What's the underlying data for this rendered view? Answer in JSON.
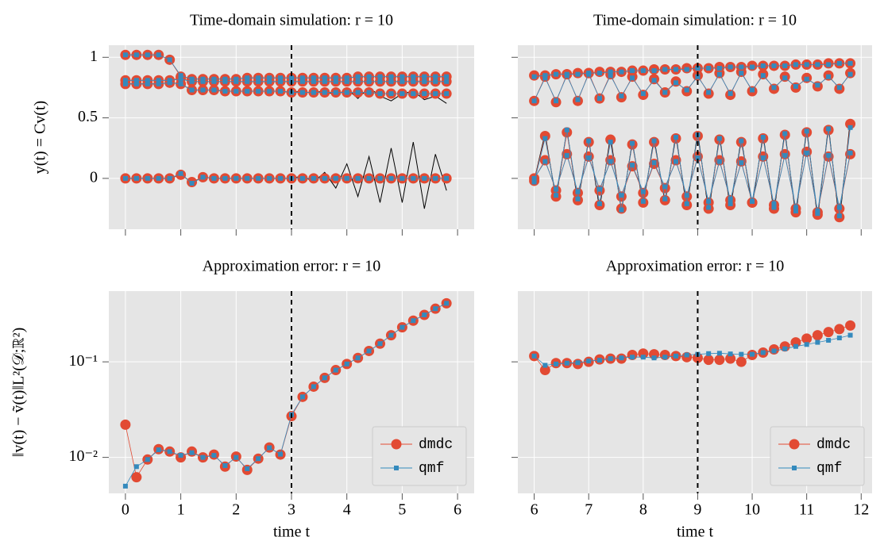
{
  "chart_data": [
    {
      "type": "line",
      "title": "Time-domain simulation: r = 10",
      "ylabel": "y(t) = Cv(t)",
      "x": [
        0,
        0.2,
        0.4,
        0.6,
        0.8,
        1.0,
        1.2,
        1.4,
        1.6,
        1.8,
        2.0,
        2.2,
        2.4,
        2.6,
        2.8,
        3.0,
        3.2,
        3.4,
        3.6,
        3.8,
        4.0,
        4.2,
        4.4,
        4.6,
        4.8,
        5.0,
        5.2,
        5.4,
        5.6,
        5.8
      ],
      "xlim": [
        -0.3,
        6.3
      ],
      "xticks": [
        0,
        1,
        2,
        3,
        4,
        5,
        6
      ],
      "ylim": [
        -0.42,
        1.1
      ],
      "yticks": [
        0,
        0.5,
        1
      ],
      "grid": true,
      "vline": 3,
      "xtick_labels": false,
      "ytick_labels": true,
      "series": [
        {
          "color": "#000000",
          "marker": "none",
          "values": [
            0.78,
            0.78,
            0.78,
            0.78,
            0.79,
            0.78,
            0.73,
            0.73,
            0.73,
            0.72,
            0.72,
            0.72,
            0.72,
            0.72,
            0.72,
            0.71,
            0.72,
            0.7,
            0.73,
            0.68,
            0.74,
            0.66,
            0.75,
            0.68,
            0.64,
            0.7,
            0.72,
            0.65,
            0.68,
            0.62
          ]
        },
        {
          "color": "#000000",
          "marker": "none",
          "values": [
            0,
            0,
            0,
            0,
            0,
            0.03,
            -0.03,
            0.01,
            0,
            0,
            0,
            0,
            0,
            0,
            0,
            0,
            0.02,
            -0.03,
            0.05,
            -0.08,
            0.12,
            -0.15,
            0.18,
            -0.2,
            0.25,
            -0.2,
            0.3,
            -0.25,
            0.2,
            -0.1
          ]
        },
        {
          "color": "#E24A33",
          "marker": "o",
          "values": [
            1.02,
            1.02,
            1.02,
            1.02,
            0.98,
            0.84,
            0.82,
            0.82,
            0.82,
            0.82,
            0.82,
            0.83,
            0.83,
            0.83,
            0.83,
            0.83,
            0.83,
            0.83,
            0.83,
            0.83,
            0.83,
            0.84,
            0.84,
            0.84,
            0.84,
            0.84,
            0.84,
            0.84,
            0.84,
            0.84
          ]
        },
        {
          "color": "#E24A33",
          "marker": "o",
          "values": [
            0.81,
            0.81,
            0.81,
            0.81,
            0.81,
            0.83,
            0.8,
            0.8,
            0.8,
            0.8,
            0.8,
            0.8,
            0.8,
            0.8,
            0.8,
            0.8,
            0.8,
            0.8,
            0.8,
            0.8,
            0.8,
            0.8,
            0.8,
            0.8,
            0.8,
            0.8,
            0.8,
            0.8,
            0.8,
            0.8
          ]
        },
        {
          "color": "#E24A33",
          "marker": "o",
          "values": [
            0.78,
            0.78,
            0.78,
            0.78,
            0.79,
            0.78,
            0.73,
            0.73,
            0.73,
            0.72,
            0.72,
            0.72,
            0.72,
            0.72,
            0.72,
            0.71,
            0.71,
            0.71,
            0.71,
            0.71,
            0.71,
            0.71,
            0.71,
            0.7,
            0.7,
            0.7,
            0.7,
            0.7,
            0.7,
            0.7
          ]
        },
        {
          "color": "#E24A33",
          "marker": "o",
          "values": [
            0,
            0,
            0,
            0,
            0,
            0.03,
            -0.03,
            0.01,
            0,
            0,
            0,
            0,
            0,
            0,
            0,
            0,
            0,
            0,
            0,
            0,
            0,
            0,
            0,
            0,
            0,
            0,
            0,
            0,
            0,
            0
          ]
        },
        {
          "color": "#348ABD",
          "marker": "s",
          "values": [
            1.02,
            1.02,
            1.02,
            1.02,
            0.98,
            0.85,
            0.82,
            0.82,
            0.82,
            0.82,
            0.82,
            0.83,
            0.83,
            0.83,
            0.83,
            0.83,
            0.83,
            0.83,
            0.83,
            0.83,
            0.83,
            0.84,
            0.84,
            0.84,
            0.84,
            0.84,
            0.84,
            0.84,
            0.84,
            0.84
          ]
        },
        {
          "color": "#348ABD",
          "marker": "s",
          "values": [
            0.81,
            0.81,
            0.81,
            0.81,
            0.81,
            0.82,
            0.8,
            0.8,
            0.8,
            0.8,
            0.8,
            0.8,
            0.8,
            0.8,
            0.8,
            0.8,
            0.8,
            0.8,
            0.8,
            0.8,
            0.8,
            0.8,
            0.8,
            0.8,
            0.8,
            0.8,
            0.8,
            0.8,
            0.8,
            0.8
          ]
        },
        {
          "color": "#348ABD",
          "marker": "s",
          "values": [
            0.78,
            0.78,
            0.78,
            0.78,
            0.79,
            0.78,
            0.73,
            0.73,
            0.73,
            0.72,
            0.72,
            0.72,
            0.72,
            0.72,
            0.72,
            0.71,
            0.71,
            0.71,
            0.71,
            0.71,
            0.71,
            0.71,
            0.71,
            0.7,
            0.7,
            0.7,
            0.7,
            0.7,
            0.7,
            0.7
          ]
        },
        {
          "color": "#348ABD",
          "marker": "s",
          "values": [
            0,
            0,
            0,
            0,
            0,
            0.04,
            -0.04,
            0.01,
            0,
            0,
            0,
            0,
            0,
            0,
            0,
            0,
            0,
            0,
            0,
            0,
            0,
            0,
            0,
            0,
            0,
            0,
            0,
            0,
            0,
            0
          ]
        }
      ]
    },
    {
      "type": "line",
      "title": "Time-domain simulation: r = 10",
      "x": [
        6,
        6.2,
        6.4,
        6.6,
        6.8,
        7.0,
        7.2,
        7.4,
        7.6,
        7.8,
        8.0,
        8.2,
        8.4,
        8.6,
        8.8,
        9.0,
        9.2,
        9.4,
        9.6,
        9.8,
        10.0,
        10.2,
        10.4,
        10.6,
        10.8,
        11.0,
        11.2,
        11.4,
        11.6,
        11.8
      ],
      "xlim": [
        5.7,
        12.2
      ],
      "xticks": [
        6,
        7,
        8,
        9,
        10,
        11,
        12
      ],
      "ylim": [
        -0.42,
        1.1
      ],
      "yticks": [
        0,
        0.5,
        1
      ],
      "grid": true,
      "vline": 9,
      "xtick_labels": false,
      "ytick_labels": false,
      "series": [
        {
          "color": "#000000",
          "marker": "none",
          "values": [
            -0.02,
            0.37,
            -0.17,
            0.4,
            -0.2,
            0.32,
            -0.25,
            0.35,
            -0.27,
            0.3,
            -0.22,
            0.33,
            -0.2,
            0.36,
            -0.25,
            0.38,
            -0.28,
            0.35,
            -0.25,
            0.33,
            -0.23,
            0.36,
            -0.28,
            0.39,
            -0.31,
            0.41,
            -0.33,
            0.43,
            -0.36,
            0.48
          ]
        },
        {
          "color": "#E24A33",
          "marker": "o",
          "values": [
            0.85,
            0.85,
            0.86,
            0.86,
            0.87,
            0.87,
            0.88,
            0.88,
            0.88,
            0.89,
            0.89,
            0.9,
            0.9,
            0.9,
            0.91,
            0.91,
            0.91,
            0.92,
            0.92,
            0.92,
            0.93,
            0.93,
            0.93,
            0.93,
            0.94,
            0.94,
            0.94,
            0.95,
            0.95,
            0.95
          ]
        },
        {
          "color": "#E24A33",
          "marker": "o",
          "values": [
            0.64,
            0.84,
            0.63,
            0.86,
            0.64,
            0.87,
            0.66,
            0.86,
            0.67,
            0.84,
            0.69,
            0.82,
            0.71,
            0.8,
            0.72,
            0.85,
            0.7,
            0.87,
            0.69,
            0.88,
            0.72,
            0.86,
            0.74,
            0.84,
            0.75,
            0.83,
            0.76,
            0.85,
            0.74,
            0.87
          ]
        },
        {
          "color": "#E24A33",
          "marker": "o",
          "values": [
            -0.02,
            0.35,
            -0.15,
            0.38,
            -0.18,
            0.3,
            -0.22,
            0.32,
            -0.25,
            0.28,
            -0.2,
            0.3,
            -0.18,
            0.33,
            -0.22,
            0.35,
            -0.25,
            0.32,
            -0.22,
            0.3,
            -0.2,
            0.33,
            -0.25,
            0.36,
            -0.28,
            0.38,
            -0.3,
            0.4,
            -0.32,
            0.45
          ]
        },
        {
          "color": "#E24A33",
          "marker": "o",
          "values": [
            0,
            0.15,
            -0.1,
            0.2,
            -0.12,
            0.18,
            -0.1,
            0.15,
            -0.15,
            0.1,
            -0.12,
            0.12,
            -0.08,
            0.15,
            -0.15,
            0.18,
            -0.2,
            0.15,
            -0.18,
            0.14,
            -0.2,
            0.18,
            -0.22,
            0.2,
            -0.25,
            0.22,
            -0.28,
            0.18,
            -0.25,
            0.2
          ]
        },
        {
          "color": "#348ABD",
          "marker": "s",
          "values": [
            0.84,
            0.85,
            0.86,
            0.86,
            0.86,
            0.87,
            0.87,
            0.88,
            0.88,
            0.89,
            0.89,
            0.89,
            0.9,
            0.9,
            0.9,
            0.91,
            0.91,
            0.91,
            0.92,
            0.92,
            0.92,
            0.93,
            0.93,
            0.93,
            0.94,
            0.94,
            0.94,
            0.94,
            0.95,
            0.95
          ]
        },
        {
          "color": "#348ABD",
          "marker": "s",
          "values": [
            0.64,
            0.83,
            0.64,
            0.85,
            0.65,
            0.86,
            0.66,
            0.85,
            0.68,
            0.83,
            0.7,
            0.81,
            0.71,
            0.79,
            0.73,
            0.84,
            0.71,
            0.86,
            0.7,
            0.87,
            0.73,
            0.85,
            0.75,
            0.83,
            0.76,
            0.82,
            0.77,
            0.84,
            0.75,
            0.86
          ]
        },
        {
          "color": "#348ABD",
          "marker": "s",
          "values": [
            -0.03,
            0.33,
            -0.14,
            0.4,
            -0.17,
            0.31,
            -0.21,
            0.3,
            -0.26,
            0.29,
            -0.19,
            0.31,
            -0.17,
            0.34,
            -0.21,
            0.36,
            -0.24,
            0.33,
            -0.21,
            0.31,
            -0.19,
            0.34,
            -0.24,
            0.37,
            -0.27,
            0.39,
            -0.29,
            0.41,
            -0.31,
            0.42
          ]
        },
        {
          "color": "#348ABD",
          "marker": "s",
          "values": [
            0,
            0.14,
            -0.09,
            0.19,
            -0.11,
            0.17,
            -0.09,
            0.14,
            -0.14,
            0.11,
            -0.11,
            0.13,
            -0.07,
            0.14,
            -0.14,
            0.17,
            -0.19,
            0.14,
            -0.17,
            0.13,
            -0.19,
            0.17,
            -0.21,
            0.19,
            -0.24,
            0.21,
            -0.27,
            0.19,
            -0.24,
            0.21
          ]
        }
      ]
    },
    {
      "type": "line",
      "title": "Approximation error: r = 10",
      "xlabel": "time t",
      "ylabel": "‖v(t) − ṽ(t)‖L²(𝒟;ℝ²)",
      "x": [
        0,
        0.2,
        0.4,
        0.6,
        0.8,
        1.0,
        1.2,
        1.4,
        1.6,
        1.8,
        2.0,
        2.2,
        2.4,
        2.6,
        2.8,
        3.0,
        3.2,
        3.4,
        3.6,
        3.8,
        4.0,
        4.2,
        4.4,
        4.6,
        4.8,
        5.0,
        5.2,
        5.4,
        5.6,
        5.8
      ],
      "xlim": [
        -0.3,
        6.3
      ],
      "xticks": [
        0,
        1,
        2,
        3,
        4,
        5,
        6
      ],
      "ylim": [
        0.0042,
        0.55
      ],
      "log_y": true,
      "yticks": [
        {
          "value": 0.01,
          "label": "10⁻²"
        },
        {
          "value": 0.1,
          "label": "10⁻¹"
        }
      ],
      "grid": true,
      "vline": 3,
      "xtick_labels": true,
      "ytick_labels": true,
      "legend": "lower right",
      "series": [
        {
          "name": "dmdc",
          "color": "#E24A33",
          "marker": "o",
          "values": [
            0.022,
            0.0062,
            0.0095,
            0.0122,
            0.0115,
            0.01,
            0.0115,
            0.01,
            0.0107,
            0.008,
            0.0102,
            0.0074,
            0.0097,
            0.0127,
            0.0107,
            0.027,
            0.043,
            0.055,
            0.068,
            0.082,
            0.095,
            0.11,
            0.13,
            0.155,
            0.19,
            0.23,
            0.27,
            0.31,
            0.36,
            0.41
          ]
        },
        {
          "name": "qmf",
          "color": "#348ABD",
          "marker": "s",
          "values": [
            0.005,
            0.008,
            0.0095,
            0.012,
            0.0115,
            0.0105,
            0.0112,
            0.01,
            0.0105,
            0.0082,
            0.01,
            0.0076,
            0.0097,
            0.0126,
            0.0108,
            0.028,
            0.043,
            0.055,
            0.068,
            0.082,
            0.095,
            0.11,
            0.13,
            0.155,
            0.19,
            0.23,
            0.27,
            0.31,
            0.36,
            0.41
          ]
        }
      ]
    },
    {
      "type": "line",
      "title": "Approximation error: r = 10",
      "xlabel": "time t",
      "x": [
        6,
        6.2,
        6.4,
        6.6,
        6.8,
        7.0,
        7.2,
        7.4,
        7.6,
        7.8,
        8.0,
        8.2,
        8.4,
        8.6,
        8.8,
        9.0,
        9.2,
        9.4,
        9.6,
        9.8,
        10.0,
        10.2,
        10.4,
        10.6,
        10.8,
        11.0,
        11.2,
        11.4,
        11.6,
        11.8
      ],
      "xlim": [
        5.7,
        12.2
      ],
      "xticks": [
        6,
        7,
        8,
        9,
        10,
        11,
        12
      ],
      "ylim": [
        0.0042,
        0.55
      ],
      "log_y": true,
      "yticks": [
        {
          "value": 0.01,
          "label": "10⁻²"
        },
        {
          "value": 0.1,
          "label": "10⁻¹"
        }
      ],
      "grid": true,
      "vline": 9,
      "xtick_labels": true,
      "ytick_labels": false,
      "legend": "lower right",
      "series": [
        {
          "name": "dmdc",
          "color": "#E24A33",
          "marker": "o",
          "values": [
            0.115,
            0.082,
            0.097,
            0.097,
            0.095,
            0.1,
            0.106,
            0.108,
            0.108,
            0.118,
            0.122,
            0.12,
            0.118,
            0.115,
            0.112,
            0.11,
            0.105,
            0.105,
            0.108,
            0.1,
            0.118,
            0.125,
            0.135,
            0.145,
            0.16,
            0.175,
            0.19,
            0.205,
            0.22,
            0.24
          ]
        },
        {
          "name": "qmf",
          "color": "#348ABD",
          "marker": "s",
          "values": [
            0.115,
            0.092,
            0.095,
            0.097,
            0.098,
            0.102,
            0.104,
            0.108,
            0.11,
            0.112,
            0.112,
            0.11,
            0.112,
            0.115,
            0.118,
            0.12,
            0.122,
            0.123,
            0.121,
            0.12,
            0.12,
            0.125,
            0.13,
            0.137,
            0.145,
            0.152,
            0.16,
            0.168,
            0.178,
            0.19
          ]
        }
      ]
    }
  ]
}
